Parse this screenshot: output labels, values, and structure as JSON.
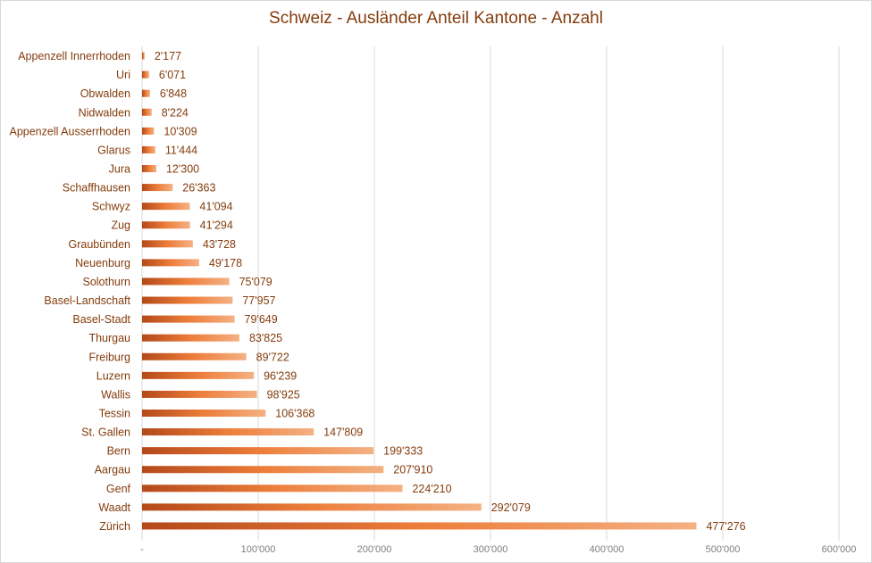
{
  "chart_data": {
    "type": "bar",
    "orientation": "horizontal",
    "title": "Schweiz - Ausländer Anteil Kantone - Anzahl",
    "xlabel": "",
    "ylabel": "",
    "xlim": [
      0,
      600000
    ],
    "grid": true,
    "legend": "none",
    "x_ticks": [
      0,
      100000,
      200000,
      300000,
      400000,
      500000,
      600000
    ],
    "x_tick_labels": [
      "-",
      "100'000",
      "200'000",
      "300'000",
      "400'000",
      "500'000",
      "600'000"
    ],
    "categories": [
      "Appenzell Innerrhoden",
      "Uri",
      "Obwalden",
      "Nidwalden",
      "Appenzell Ausserrhoden",
      "Glarus",
      "Jura",
      "Schaffhausen",
      "Schwyz",
      "Zug",
      "Graubünden",
      "Neuenburg",
      "Solothurn",
      "Basel-Landschaft",
      "Basel-Stadt",
      "Thurgau",
      "Freiburg",
      "Luzern",
      "Wallis",
      "Tessin",
      "St. Gallen",
      "Bern",
      "Aargau",
      "Genf",
      "Waadt",
      "Zürich"
    ],
    "values": [
      2177,
      6071,
      6848,
      8224,
      10309,
      11444,
      12300,
      26363,
      41094,
      41294,
      43728,
      49178,
      75079,
      77957,
      79649,
      83825,
      89722,
      96239,
      98925,
      106368,
      147809,
      199333,
      207910,
      224210,
      292079,
      477276
    ],
    "data_labels": [
      "2'177",
      "6'071",
      "6'848",
      "8'224",
      "10'309",
      "11'444",
      "12'300",
      "26'363",
      "41'094",
      "41'294",
      "43'728",
      "49'178",
      "75'079",
      "77'957",
      "79'649",
      "83'825",
      "89'722",
      "96'239",
      "98'925",
      "106'368",
      "147'809",
      "199'333",
      "207'910",
      "224'210",
      "292'079",
      "477'276"
    ],
    "colors": {
      "bar_start": "#b4491a",
      "bar_mid": "#ed7d3a",
      "bar_end": "#f4b183",
      "text": "#843c0c",
      "tick_text": "#7f7f7f",
      "grid": "#d9d9d9"
    }
  }
}
